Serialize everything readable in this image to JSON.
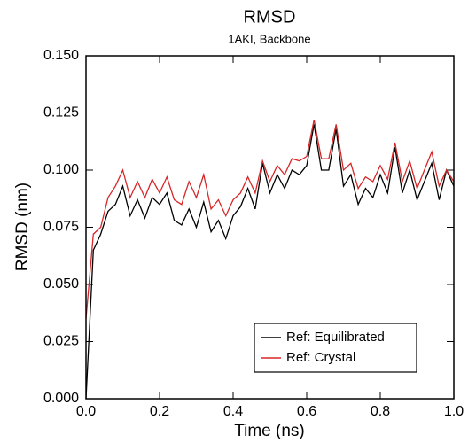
{
  "chart_data": {
    "type": "line",
    "title": "RMSD",
    "subtitle": "1AKI, Backbone",
    "x_label": "Time (ns)",
    "y_label": "RMSD (nm)",
    "x": [
      0,
      0.02,
      0.04,
      0.06,
      0.08,
      0.1,
      0.12,
      0.14,
      0.16,
      0.18,
      0.2,
      0.22,
      0.24,
      0.26,
      0.28,
      0.3,
      0.32,
      0.34,
      0.36,
      0.38,
      0.4,
      0.42,
      0.44,
      0.46,
      0.48,
      0.5,
      0.52,
      0.54,
      0.56,
      0.58,
      0.6,
      0.62,
      0.64,
      0.66,
      0.68,
      0.7,
      0.72,
      0.74,
      0.76,
      0.78,
      0.8,
      0.82,
      0.84,
      0.86,
      0.88,
      0.9,
      0.92,
      0.94,
      0.96,
      0.98,
      1.0
    ],
    "series": [
      {
        "name": "Ref: Equilibrated",
        "color": "#000000",
        "values": [
          0.0,
          0.065,
          0.072,
          0.082,
          0.085,
          0.093,
          0.08,
          0.087,
          0.079,
          0.088,
          0.085,
          0.09,
          0.078,
          0.076,
          0.083,
          0.075,
          0.086,
          0.073,
          0.078,
          0.07,
          0.08,
          0.084,
          0.092,
          0.083,
          0.103,
          0.09,
          0.098,
          0.092,
          0.1,
          0.098,
          0.102,
          0.12,
          0.1,
          0.1,
          0.118,
          0.093,
          0.098,
          0.085,
          0.092,
          0.088,
          0.098,
          0.09,
          0.11,
          0.09,
          0.1,
          0.087,
          0.095,
          0.103,
          0.087,
          0.1,
          0.093
        ]
      },
      {
        "name": "Ref: Crystal",
        "color": "#d62728",
        "values": [
          0.035,
          0.072,
          0.075,
          0.088,
          0.093,
          0.1,
          0.088,
          0.095,
          0.088,
          0.096,
          0.09,
          0.097,
          0.087,
          0.085,
          0.095,
          0.088,
          0.098,
          0.083,
          0.087,
          0.08,
          0.087,
          0.09,
          0.097,
          0.09,
          0.104,
          0.095,
          0.102,
          0.098,
          0.105,
          0.104,
          0.106,
          0.122,
          0.105,
          0.105,
          0.12,
          0.1,
          0.103,
          0.092,
          0.097,
          0.095,
          0.102,
          0.096,
          0.112,
          0.095,
          0.104,
          0.092,
          0.1,
          0.108,
          0.093,
          0.1,
          0.095
        ]
      }
    ],
    "xlim": [
      0,
      1
    ],
    "ylim": [
      0,
      0.15
    ],
    "xticks": [
      {
        "value": 0,
        "label": "0.0"
      },
      0.2,
      0.4,
      0.6,
      0.8,
      {
        "value": 1,
        "label": "1.0"
      }
    ],
    "yticks": [
      {
        "value": 0,
        "label": "0.000"
      },
      0.025,
      {
        "value": 0.05,
        "label": "0.050"
      },
      0.075,
      {
        "value": 0.1,
        "label": "0.100"
      },
      0.125,
      {
        "value": 0.15,
        "label": "0.150"
      }
    ],
    "legend": "lower right"
  }
}
